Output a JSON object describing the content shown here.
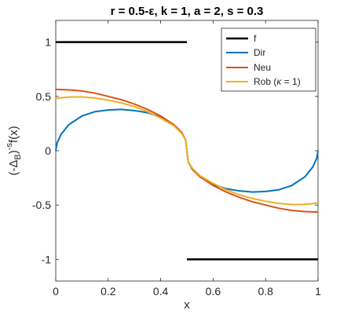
{
  "chart_data": {
    "type": "line",
    "title": "r = 0.5-ε, k = 1, a = 2, s = 0.3",
    "xlabel": "x",
    "ylabel_base": "(-Δ",
    "ylabel_sub": "B",
    "ylabel_close": ")",
    "ylabel_sup": "-s",
    "ylabel_tail": "f(x)",
    "xlim": [
      0,
      1
    ],
    "ylim": [
      -1.2,
      1.2
    ],
    "x_ticks": [
      0,
      0.2,
      0.4,
      0.6,
      0.8,
      1
    ],
    "x_tick_labels": [
      "0",
      "0.2",
      "0.4",
      "0.6",
      "0.8",
      "1"
    ],
    "y_ticks": [
      -1,
      -0.5,
      0,
      0.5,
      1
    ],
    "y_tick_labels": [
      "-1",
      "-0.5",
      "0",
      "0.5",
      "1"
    ],
    "grid": false,
    "legend_position": "top-right",
    "series": [
      {
        "name": "f",
        "color": "#000000",
        "segments": [
          {
            "x": [
              0,
              0.5
            ],
            "y": [
              1,
              1
            ]
          },
          {
            "x": [
              0.5,
              1
            ],
            "y": [
              -1,
              -1
            ]
          }
        ]
      },
      {
        "name": "Dir",
        "color": "#0072BD",
        "x": [
          0,
          0.005,
          0.02,
          0.05,
          0.1,
          0.15,
          0.2,
          0.25,
          0.3,
          0.35,
          0.4,
          0.45,
          0.48,
          0.495,
          0.5,
          0.505,
          0.52,
          0.55,
          0.6,
          0.65,
          0.7,
          0.75,
          0.8,
          0.85,
          0.9,
          0.95,
          0.98,
          0.995,
          1
        ],
        "y": [
          0,
          0.07,
          0.15,
          0.24,
          0.32,
          0.36,
          0.375,
          0.38,
          0.37,
          0.35,
          0.31,
          0.24,
          0.17,
          0.1,
          0,
          -0.1,
          -0.17,
          -0.24,
          -0.31,
          -0.35,
          -0.37,
          -0.38,
          -0.375,
          -0.36,
          -0.32,
          -0.24,
          -0.15,
          -0.07,
          0
        ]
      },
      {
        "name": "Neu",
        "color": "#D95319",
        "x": [
          0,
          0.05,
          0.1,
          0.15,
          0.2,
          0.25,
          0.3,
          0.35,
          0.4,
          0.45,
          0.48,
          0.495,
          0.5,
          0.505,
          0.52,
          0.55,
          0.6,
          0.65,
          0.7,
          0.75,
          0.8,
          0.85,
          0.9,
          0.95,
          1
        ],
        "y": [
          0.565,
          0.56,
          0.55,
          0.53,
          0.5,
          0.47,
          0.43,
          0.38,
          0.32,
          0.24,
          0.17,
          0.1,
          0,
          -0.1,
          -0.17,
          -0.24,
          -0.32,
          -0.38,
          -0.43,
          -0.47,
          -0.5,
          -0.53,
          -0.55,
          -0.56,
          -0.565
        ]
      },
      {
        "name": "Rob (κ = 1)",
        "color": "#EDB120",
        "x": [
          0,
          0.03,
          0.06,
          0.1,
          0.15,
          0.2,
          0.25,
          0.3,
          0.35,
          0.4,
          0.45,
          0.48,
          0.495,
          0.5,
          0.505,
          0.52,
          0.55,
          0.6,
          0.65,
          0.7,
          0.75,
          0.8,
          0.85,
          0.9,
          0.94,
          0.97,
          1
        ],
        "y": [
          0.48,
          0.49,
          0.495,
          0.495,
          0.485,
          0.465,
          0.44,
          0.405,
          0.36,
          0.3,
          0.23,
          0.16,
          0.1,
          0,
          -0.1,
          -0.16,
          -0.23,
          -0.3,
          -0.36,
          -0.405,
          -0.44,
          -0.465,
          -0.485,
          -0.495,
          -0.495,
          -0.49,
          -0.48
        ]
      }
    ],
    "legend_labels": {
      "f": "f",
      "Dir": "Dir",
      "Neu": "Neu",
      "Rob_prefix": "Rob (",
      "Rob_kappa": "κ",
      "Rob_suffix": " = 1)"
    }
  }
}
